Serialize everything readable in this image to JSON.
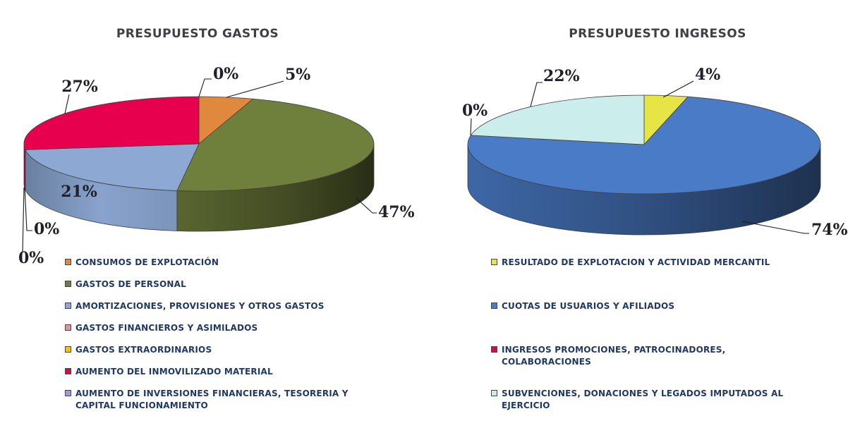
{
  "page": {
    "background": "#FFFFFF",
    "title_color": "#3F3F47",
    "legend_text_color": "#1F3864",
    "percent_label_color": "#20202B",
    "leader_line_color": "#1A1A1A"
  },
  "chart_data": [
    {
      "type": "pie",
      "style": "3d-pie",
      "title": "PRESUPUESTO GASTOS",
      "unit": "%",
      "legend_position": "bottom-left",
      "labels": [
        "CONSUMOS DE EXPLOTACIÓN",
        "GASTOS DE PERSONAL",
        "AMORTIZACIONES, PROVISIONES Y OTROS GASTOS",
        "GASTOS FINANCIEROS Y ASIMILADOS",
        "GASTOS EXTRAORDINARIOS",
        "AUMENTO DEL INMOVILIZADO MATERIAL",
        "AUMENTO DE INVERSIONES FINANCIERAS, TESORERIA Y CAPITAL FUNCIONAMIENTO"
      ],
      "values": [
        5,
        47,
        21,
        0,
        0,
        27,
        0
      ],
      "colors": [
        "#E0893E",
        "#6F7F3C",
        "#8CA8D3",
        "#F08E8E",
        "#FFC000",
        "#E6004E",
        "#9B9BE4"
      ]
    },
    {
      "type": "pie",
      "style": "3d-pie",
      "title": "PRESUPUESTO INGRESOS",
      "unit": "%",
      "legend_position": "bottom-left",
      "labels": [
        "RESULTADO DE EXPLOTACION Y ACTIVIDAD MERCANTIL",
        "CUOTAS DE USUARIOS Y AFILIADOS",
        "INGRESOS PROMOCIONES, PATROCINADORES, COLABORACIONES",
        "SUBVENCIONES, DONACIONES Y LEGADOS IMPUTADOS AL EJERCICIO"
      ],
      "values": [
        4,
        74,
        0,
        22
      ],
      "colors": [
        "#E7E446",
        "#4A7BC6",
        "#E6004E",
        "#CBEDEC"
      ]
    }
  ]
}
